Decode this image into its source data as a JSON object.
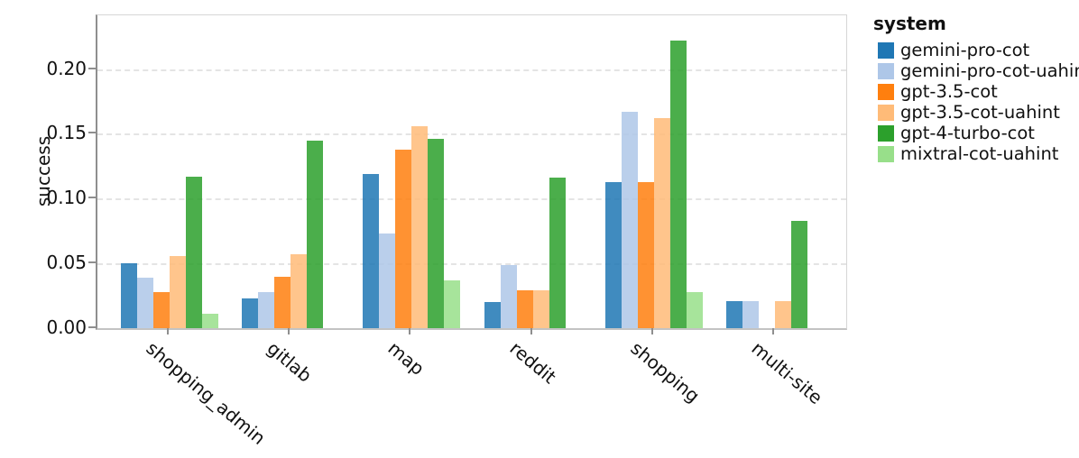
{
  "chart_data": {
    "type": "bar",
    "title": "",
    "xlabel": "",
    "ylabel": "success",
    "ylim": [
      0,
      0.2414
    ],
    "yticks": [
      0.0,
      0.05,
      0.1,
      0.15,
      0.2
    ],
    "ytick_labels": [
      "0.00",
      "0.05",
      "0.10",
      "0.15",
      "0.20"
    ],
    "grid": "horizontal-dashed",
    "legend_title": "system",
    "legend_position": "outside-right-top",
    "categories": [
      "shopping_admin",
      "gitlab",
      "map",
      "reddit",
      "shopping",
      "multi-site"
    ],
    "series": [
      {
        "name": "gemini-pro-cot",
        "color": "#1f77b4",
        "values": [
          0.05,
          0.023,
          0.119,
          0.02,
          0.113,
          0.021
        ]
      },
      {
        "name": "gemini-pro-cot-uahint",
        "color": "#aec7e8",
        "values": [
          0.039,
          0.028,
          0.073,
          0.049,
          0.167,
          0.021
        ]
      },
      {
        "name": "gpt-3.5-cot",
        "color": "#ff7f0e",
        "values": [
          0.028,
          0.04,
          0.138,
          0.029,
          0.113,
          0.0
        ]
      },
      {
        "name": "gpt-3.5-cot-uahint",
        "color": "#ffbb78",
        "values": [
          0.056,
          0.057,
          0.156,
          0.029,
          0.162,
          0.021
        ]
      },
      {
        "name": "gpt-4-turbo-cot",
        "color": "#2ca02c",
        "values": [
          0.117,
          0.145,
          0.146,
          0.116,
          0.222,
          0.083
        ]
      },
      {
        "name": "mixtral-cot-uahint",
        "color": "#98df8a",
        "values": [
          0.011,
          0.0,
          0.037,
          0.0,
          0.028,
          0.0
        ]
      }
    ],
    "bar_alpha": 0.85
  }
}
